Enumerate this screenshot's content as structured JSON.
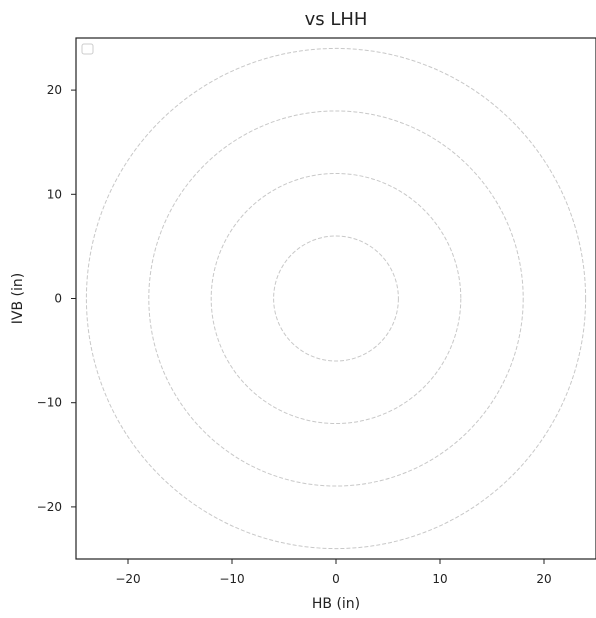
{
  "chart_data": {
    "type": "scatter",
    "title": "vs LHH",
    "xlabel": "HB (in)",
    "ylabel": "IVB (in)",
    "xlim": [
      -25,
      25
    ],
    "ylim": [
      -25,
      25
    ],
    "xticks": [
      -20,
      -10,
      0,
      10,
      20
    ],
    "yticks": [
      -20,
      -10,
      0,
      10,
      20
    ],
    "xtick_labels": [
      "−20",
      "−10",
      "0",
      "10",
      "20"
    ],
    "ytick_labels": [
      "−20",
      "−10",
      "0",
      "10",
      "20"
    ],
    "reference_circles": {
      "center": [
        0,
        0
      ],
      "radii": [
        6,
        12,
        18,
        24
      ],
      "style": "dashed",
      "color": "#c8c8c8"
    },
    "series": [],
    "legend": {
      "placement": "top-left",
      "entries": []
    },
    "grid": false
  }
}
